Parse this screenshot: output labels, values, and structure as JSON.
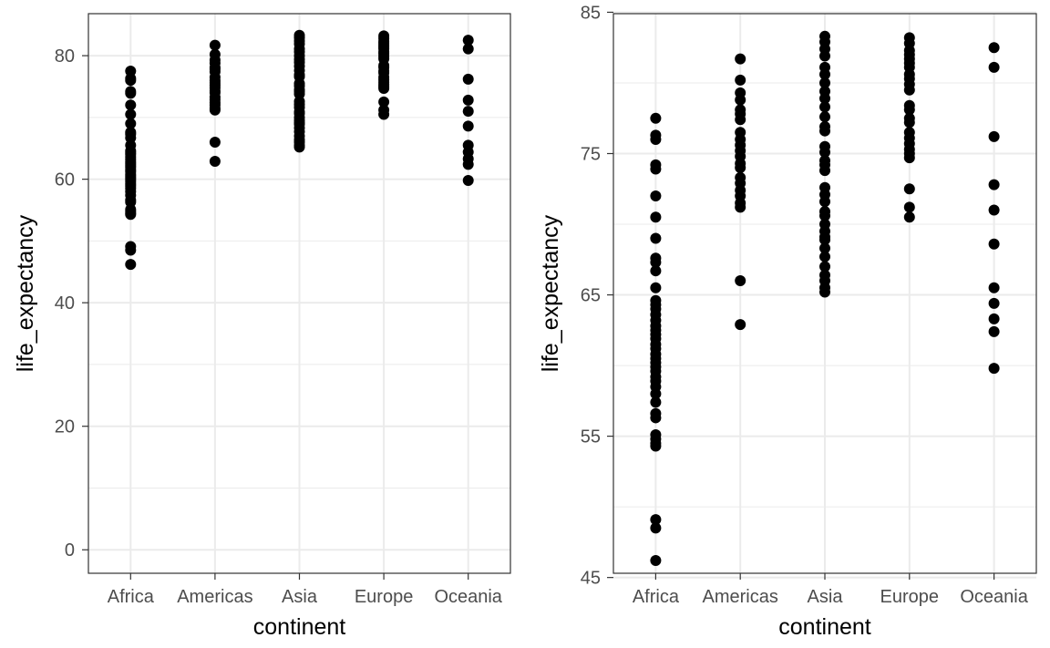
{
  "chart_data": [
    {
      "type": "scatter",
      "xlabel": "continent",
      "ylabel": "life_expectancy",
      "categories": [
        "Africa",
        "Americas",
        "Asia",
        "Europe",
        "Oceania"
      ],
      "ylim": [
        -3.8,
        86.8
      ],
      "yticks": [
        0,
        20,
        40,
        60,
        80
      ],
      "yticks_minor": [
        10,
        30,
        50,
        70
      ],
      "grid": true,
      "series": [
        {
          "category": "Africa",
          "values": [
            77.5,
            76.3,
            76.0,
            74.2,
            73.9,
            72.0,
            70.5,
            69.0,
            67.6,
            67.3,
            66.7,
            65.5,
            64.6,
            64.3,
            64.0,
            63.6,
            63.2,
            62.8,
            62.5,
            62.2,
            61.9,
            61.5,
            61.2,
            60.8,
            60.5,
            60.2,
            59.9,
            59.6,
            59.2,
            58.9,
            58.5,
            58.0,
            57.4,
            56.6,
            56.3,
            55.1,
            54.8,
            54.5,
            54.3,
            49.1,
            48.5,
            46.2
          ]
        },
        {
          "category": "Americas",
          "values": [
            81.7,
            80.2,
            79.3,
            78.8,
            78.1,
            77.8,
            77.4,
            76.5,
            76.0,
            75.6,
            75.2,
            74.8,
            74.3,
            74.0,
            73.3,
            72.9,
            72.4,
            72.0,
            71.5,
            71.2,
            66.0,
            62.9
          ]
        },
        {
          "category": "Asia",
          "values": [
            83.3,
            82.9,
            82.4,
            81.9,
            81.1,
            80.6,
            80.0,
            79.4,
            78.9,
            78.3,
            77.6,
            76.9,
            76.6,
            75.5,
            75.1,
            74.5,
            74.2,
            73.8,
            72.6,
            72.1,
            71.6,
            70.9,
            70.6,
            70.0,
            69.5,
            69.1,
            68.9,
            68.3,
            67.7,
            67.0,
            66.4,
            66.0,
            65.5,
            65.2
          ]
        },
        {
          "category": "Europe",
          "values": [
            83.2,
            82.8,
            82.3,
            82.0,
            81.7,
            81.4,
            81.1,
            80.6,
            80.3,
            79.9,
            79.5,
            78.4,
            78.1,
            77.5,
            77.2,
            76.5,
            76.1,
            75.7,
            75.3,
            75.0,
            74.7,
            72.5,
            71.2,
            70.5
          ]
        },
        {
          "category": "Oceania",
          "values": [
            82.5,
            81.1,
            76.2,
            72.8,
            71.0,
            68.6,
            65.5,
            64.4,
            63.3,
            62.4,
            59.8
          ]
        }
      ]
    },
    {
      "type": "scatter",
      "xlabel": "continent",
      "ylabel": "life_expectancy",
      "categories": [
        "Africa",
        "Americas",
        "Asia",
        "Europe",
        "Oceania"
      ],
      "ylim": [
        45.3,
        84.9
      ],
      "yticks": [
        45,
        55,
        65,
        75,
        85
      ],
      "yticks_minor": [
        50,
        60,
        70,
        80
      ],
      "grid": true,
      "series": [
        {
          "category": "Africa",
          "values": [
            77.5,
            76.3,
            76.0,
            74.2,
            73.9,
            72.0,
            70.5,
            69.0,
            67.6,
            67.3,
            66.7,
            65.5,
            64.6,
            64.3,
            64.0,
            63.6,
            63.2,
            62.8,
            62.5,
            62.2,
            61.9,
            61.5,
            61.2,
            60.8,
            60.5,
            60.2,
            59.9,
            59.6,
            59.2,
            58.9,
            58.5,
            58.0,
            57.4,
            56.6,
            56.3,
            55.1,
            54.8,
            54.5,
            54.3,
            49.1,
            48.5,
            46.2
          ]
        },
        {
          "category": "Americas",
          "values": [
            81.7,
            80.2,
            79.3,
            78.8,
            78.1,
            77.8,
            77.4,
            76.5,
            76.0,
            75.6,
            75.2,
            74.8,
            74.3,
            74.0,
            73.3,
            72.9,
            72.4,
            72.0,
            71.5,
            71.2,
            66.0,
            62.9
          ]
        },
        {
          "category": "Asia",
          "values": [
            83.3,
            82.9,
            82.4,
            81.9,
            81.1,
            80.6,
            80.0,
            79.4,
            78.9,
            78.3,
            77.6,
            76.9,
            76.6,
            75.5,
            75.1,
            74.5,
            74.2,
            73.8,
            72.6,
            72.1,
            71.6,
            70.9,
            70.6,
            70.0,
            69.5,
            69.1,
            68.9,
            68.3,
            67.7,
            67.0,
            66.4,
            66.0,
            65.5,
            65.2
          ]
        },
        {
          "category": "Europe",
          "values": [
            83.2,
            82.8,
            82.3,
            82.0,
            81.7,
            81.4,
            81.1,
            80.6,
            80.3,
            79.9,
            79.5,
            78.4,
            78.1,
            77.5,
            77.2,
            76.5,
            76.1,
            75.7,
            75.3,
            75.0,
            74.7,
            72.5,
            71.2,
            70.5
          ]
        },
        {
          "category": "Oceania",
          "values": [
            82.5,
            81.1,
            76.2,
            72.8,
            71.0,
            68.6,
            65.5,
            64.4,
            63.3,
            62.4,
            59.8
          ]
        }
      ]
    }
  ]
}
